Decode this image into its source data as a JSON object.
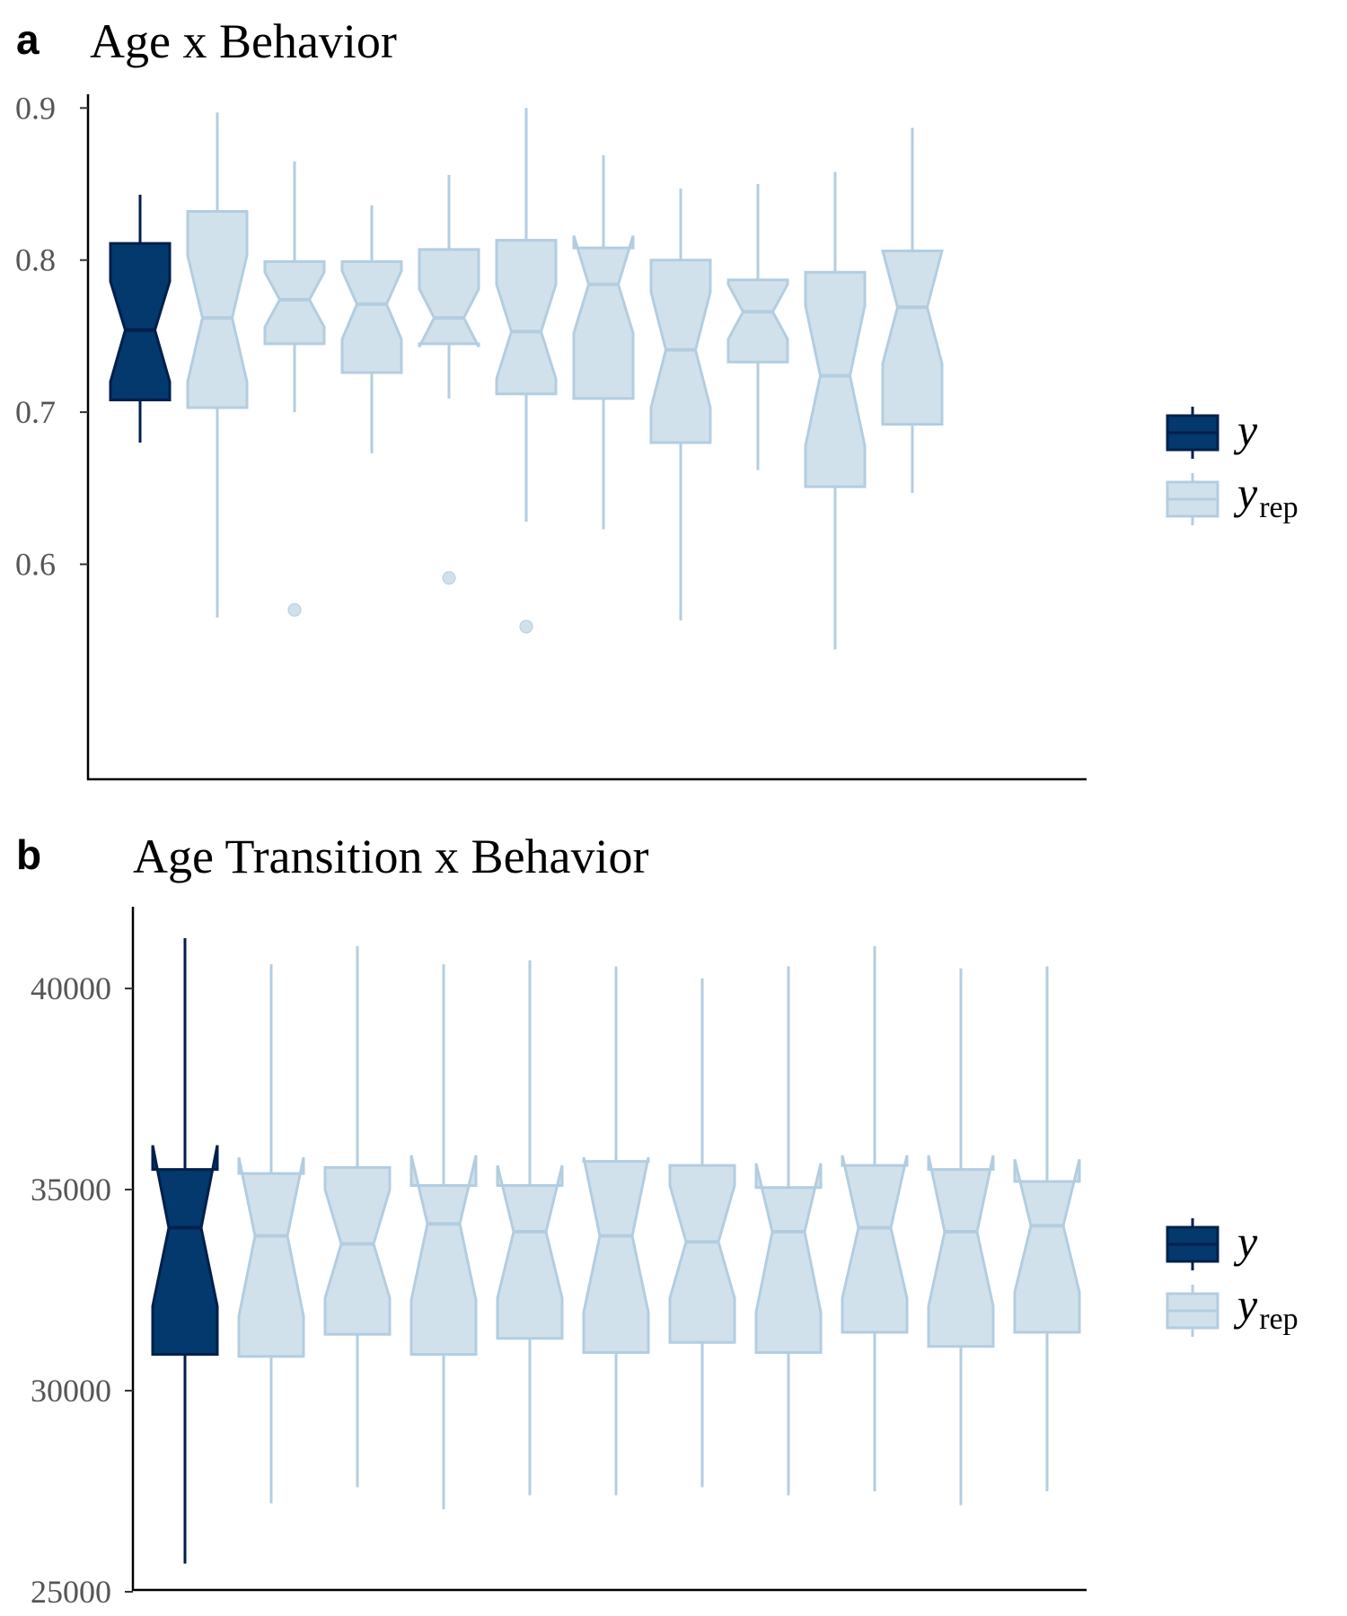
{
  "chart_data": [
    {
      "type": "boxplot",
      "panel_label": "a",
      "title": "Age x Behavior",
      "xlabel": "",
      "ylabel": "",
      "ylim": [
        0.525,
        0.918
      ],
      "yticks": [
        0.6,
        0.7,
        0.8,
        0.9
      ],
      "ytick_labels": [
        "0.6",
        "0.7",
        "0.8",
        "0.9"
      ],
      "grid": false,
      "legend_position": "right",
      "series": [
        {
          "name": "y",
          "kind": "observed",
          "whisker_low": 0.68,
          "q1": 0.708,
          "median": 0.754,
          "q3": 0.811,
          "whisker_high": 0.843,
          "notch_low": 0.72,
          "notch_high": 0.786,
          "outliers": []
        },
        {
          "name": "y_rep 1",
          "kind": "replicate",
          "whisker_low": 0.565,
          "q1": 0.703,
          "median": 0.762,
          "q3": 0.832,
          "whisker_high": 0.897,
          "notch_low": 0.72,
          "notch_high": 0.803,
          "outliers": []
        },
        {
          "name": "y_rep 2",
          "kind": "replicate",
          "whisker_low": 0.7,
          "q1": 0.745,
          "median": 0.774,
          "q3": 0.799,
          "whisker_high": 0.865,
          "notch_low": 0.756,
          "notch_high": 0.792,
          "outliers": [
            0.57
          ]
        },
        {
          "name": "y_rep 3",
          "kind": "replicate",
          "whisker_low": 0.673,
          "q1": 0.726,
          "median": 0.771,
          "q3": 0.799,
          "whisker_high": 0.836,
          "notch_low": 0.748,
          "notch_high": 0.793,
          "outliers": []
        },
        {
          "name": "y_rep 4",
          "kind": "replicate",
          "whisker_low": 0.709,
          "q1": 0.745,
          "median": 0.762,
          "q3": 0.807,
          "whisker_high": 0.856,
          "notch_low": 0.743,
          "notch_high": 0.781,
          "outliers": [
            0.591
          ]
        },
        {
          "name": "y_rep 5",
          "kind": "replicate",
          "whisker_low": 0.628,
          "q1": 0.712,
          "median": 0.753,
          "q3": 0.813,
          "whisker_high": 0.9,
          "notch_low": 0.722,
          "notch_high": 0.784,
          "outliers": [
            0.559
          ]
        },
        {
          "name": "y_rep 6",
          "kind": "replicate",
          "whisker_low": 0.623,
          "q1": 0.709,
          "median": 0.784,
          "q3": 0.808,
          "whisker_high": 0.869,
          "notch_low": 0.752,
          "notch_high": 0.816,
          "outliers": []
        },
        {
          "name": "y_rep 7",
          "kind": "replicate",
          "whisker_low": 0.563,
          "q1": 0.68,
          "median": 0.741,
          "q3": 0.8,
          "whisker_high": 0.847,
          "notch_low": 0.703,
          "notch_high": 0.779,
          "outliers": []
        },
        {
          "name": "y_rep 8",
          "kind": "replicate",
          "whisker_low": 0.662,
          "q1": 0.733,
          "median": 0.766,
          "q3": 0.787,
          "whisker_high": 0.85,
          "notch_low": 0.748,
          "notch_high": 0.784,
          "outliers": []
        },
        {
          "name": "y_rep 9",
          "kind": "replicate",
          "whisker_low": 0.544,
          "q1": 0.651,
          "median": 0.724,
          "q3": 0.792,
          "whisker_high": 0.858,
          "notch_low": 0.678,
          "notch_high": 0.77,
          "outliers": []
        },
        {
          "name": "y_rep 10",
          "kind": "replicate",
          "whisker_low": 0.647,
          "q1": 0.692,
          "median": 0.769,
          "q3": 0.806,
          "whisker_high": 0.887,
          "notch_low": 0.732,
          "notch_high": 0.806,
          "outliers": []
        }
      ]
    },
    {
      "type": "boxplot",
      "panel_label": "b",
      "title": "Age Transition x Behavior",
      "xlabel": "",
      "ylabel": "",
      "ylim": [
        24900,
        42000
      ],
      "yticks": [
        25000,
        30000,
        35000,
        40000
      ],
      "ytick_labels": [
        "25000",
        "30000",
        "35000",
        "40000"
      ],
      "grid": false,
      "legend_position": "right",
      "series": [
        {
          "name": "y",
          "kind": "observed",
          "whisker_low": 25700,
          "q1": 30900,
          "median": 34050,
          "q3": 35500,
          "whisker_high": 41250,
          "notch_low": 32100,
          "notch_high": 36100,
          "outliers": []
        },
        {
          "name": "y_rep 1",
          "kind": "replicate",
          "whisker_low": 27200,
          "q1": 30850,
          "median": 33850,
          "q3": 35400,
          "whisker_high": 40600,
          "notch_low": 31850,
          "notch_high": 35800,
          "outliers": []
        },
        {
          "name": "y_rep 2",
          "kind": "replicate",
          "whisker_low": 27600,
          "q1": 31400,
          "median": 33650,
          "q3": 35550,
          "whisker_high": 41050,
          "notch_low": 32300,
          "notch_high": 35000,
          "outliers": []
        },
        {
          "name": "y_rep 3",
          "kind": "replicate",
          "whisker_low": 27050,
          "q1": 30900,
          "median": 34150,
          "q3": 35100,
          "whisker_high": 40600,
          "notch_low": 32250,
          "notch_high": 35850,
          "outliers": []
        },
        {
          "name": "y_rep 4",
          "kind": "replicate",
          "whisker_low": 27400,
          "q1": 31300,
          "median": 33950,
          "q3": 35100,
          "whisker_high": 40700,
          "notch_low": 32300,
          "notch_high": 35600,
          "outliers": []
        },
        {
          "name": "y_rep 5",
          "kind": "replicate",
          "whisker_low": 27400,
          "q1": 30950,
          "median": 33850,
          "q3": 35700,
          "whisker_high": 40550,
          "notch_low": 31950,
          "notch_high": 35800,
          "outliers": []
        },
        {
          "name": "y_rep 6",
          "kind": "replicate",
          "whisker_low": 27600,
          "q1": 31200,
          "median": 33700,
          "q3": 35600,
          "whisker_high": 40250,
          "notch_low": 32300,
          "notch_high": 35100,
          "outliers": []
        },
        {
          "name": "y_rep 7",
          "kind": "replicate",
          "whisker_low": 27400,
          "q1": 30950,
          "median": 33950,
          "q3": 35050,
          "whisker_high": 40550,
          "notch_low": 31950,
          "notch_high": 35650,
          "outliers": []
        },
        {
          "name": "y_rep 8",
          "kind": "replicate",
          "whisker_low": 27500,
          "q1": 31450,
          "median": 34050,
          "q3": 35600,
          "whisker_high": 41050,
          "notch_low": 32300,
          "notch_high": 35850,
          "outliers": []
        },
        {
          "name": "y_rep 9",
          "kind": "replicate",
          "whisker_low": 27150,
          "q1": 31100,
          "median": 33950,
          "q3": 35500,
          "whisker_high": 40500,
          "notch_low": 32100,
          "notch_high": 35850,
          "outliers": []
        },
        {
          "name": "y_rep 10",
          "kind": "replicate",
          "whisker_low": 27500,
          "q1": 31450,
          "median": 34100,
          "q3": 35200,
          "whisker_high": 40550,
          "notch_low": 32450,
          "notch_high": 35750,
          "outliers": []
        }
      ]
    }
  ],
  "legend": {
    "items": [
      {
        "label": "y",
        "subscript": ""
      },
      {
        "label": "y",
        "subscript": "rep"
      }
    ]
  },
  "colors": {
    "observed_fill": "#03396c",
    "observed_line": "#011f4b",
    "replicate_fill": "#d1e1ec",
    "replicate_line": "#b3cde0",
    "axis": "#000000",
    "tick_label": "#555555"
  }
}
